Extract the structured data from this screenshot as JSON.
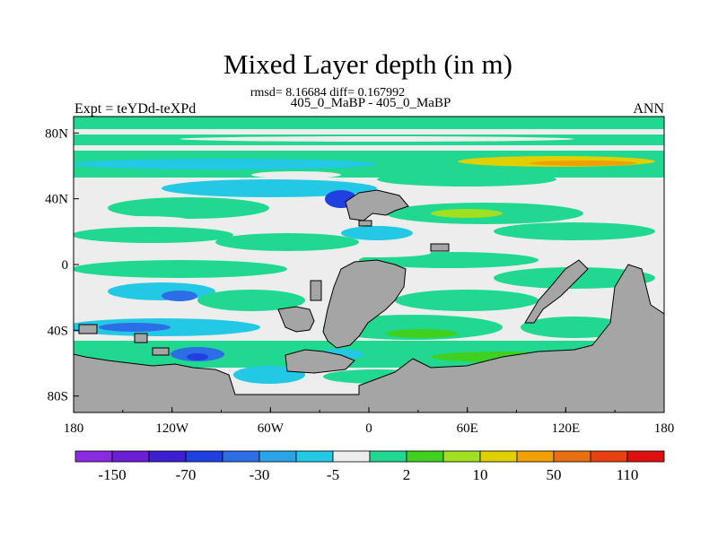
{
  "chart_data": {
    "type": "heatmap",
    "title": "Mixed Layer depth (in m)",
    "stats_line": "rmsd= 8.16684 diff= 0.167992",
    "subtitle": "405_0_MaBP - 405_0_MaBP",
    "left_label": "Expt = teYDd-teXPd",
    "right_label": "ANN",
    "x_ticks": [
      "180",
      "120W",
      "60W",
      "0",
      "60E",
      "120E",
      "180"
    ],
    "y_ticks": [
      "80N",
      "40N",
      "0",
      "40S",
      "80S"
    ],
    "x_range": [
      -180,
      180
    ],
    "y_range": [
      -90,
      90
    ],
    "legend_placement": "bottom",
    "colorbar_labels": [
      "-150",
      "-70",
      "-30",
      "-5",
      "2",
      "10",
      "50",
      "110"
    ],
    "colorbar_colors": [
      "#8a2be2",
      "#6a1fd6",
      "#3b1fd0",
      "#2040e0",
      "#2c6ee6",
      "#2aa4e6",
      "#22c8e4",
      "#ededed",
      "#20d890",
      "#40d020",
      "#a0e020",
      "#e0d000",
      "#f0a000",
      "#e87010",
      "#e84010",
      "#e01010"
    ],
    "land_color": "#a5a5a5",
    "background_value_color": "#ededed"
  }
}
